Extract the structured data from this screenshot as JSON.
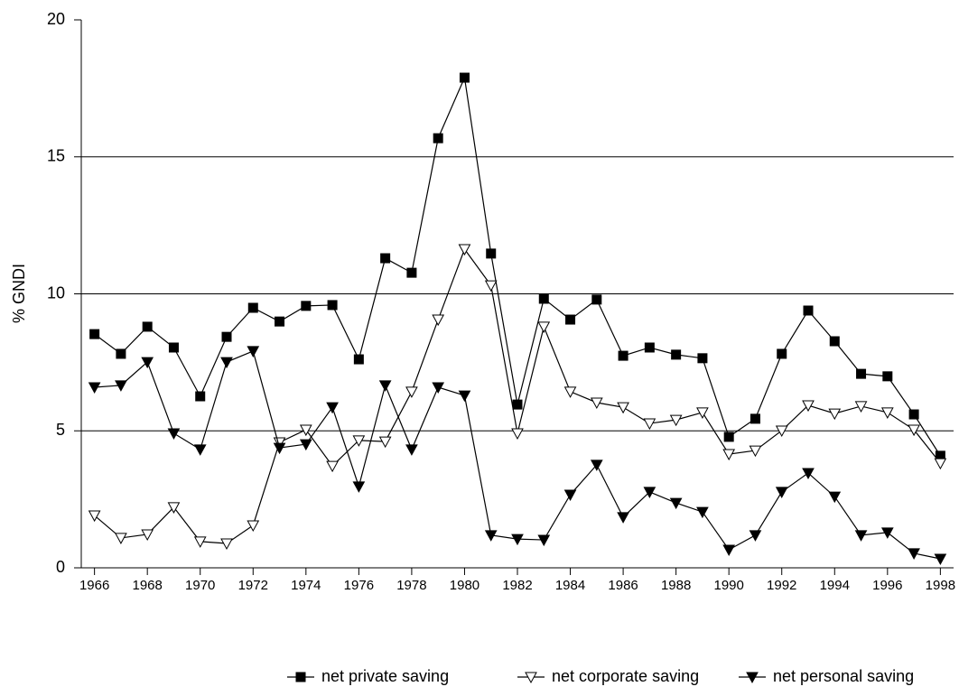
{
  "chart_data": {
    "type": "line",
    "y_label": "% GNDI",
    "x": [
      1966,
      1967,
      1968,
      1969,
      1970,
      1971,
      1972,
      1973,
      1974,
      1975,
      1976,
      1977,
      1978,
      1979,
      1980,
      1981,
      1982,
      1983,
      1984,
      1985,
      1986,
      1987,
      1988,
      1989,
      1990,
      1991,
      1992,
      1993,
      1994,
      1995,
      1996,
      1997,
      1998
    ],
    "series": [
      {
        "name": "net private saving",
        "color": "#000000",
        "marker": "square",
        "values": [
          8.53,
          7.81,
          8.8,
          8.04,
          6.26,
          8.43,
          9.49,
          8.99,
          9.56,
          9.59,
          7.61,
          11.3,
          10.77,
          15.68,
          17.89,
          11.47,
          5.96,
          9.82,
          9.06,
          9.79,
          7.74,
          8.04,
          7.78,
          7.65,
          4.78,
          5.44,
          7.81,
          9.39,
          8.27,
          7.08,
          6.99,
          5.6,
          4.09
        ]
      },
      {
        "name": "net corporate saving",
        "color": "#000000",
        "marker": "triangle-open",
        "values": [
          1.91,
          1.09,
          1.22,
          2.21,
          0.96,
          0.89,
          1.55,
          4.58,
          5.04,
          3.72,
          4.65,
          4.61,
          6.43,
          9.06,
          11.63,
          10.31,
          4.91,
          8.8,
          6.43,
          6.03,
          5.86,
          5.27,
          5.4,
          5.67,
          4.15,
          4.28,
          5.01,
          5.93,
          5.63,
          5.9,
          5.67,
          5.04,
          3.82
        ]
      },
      {
        "name": "net personal saving",
        "color": "#000000",
        "marker": "triangle",
        "values": [
          6.59,
          6.66,
          7.51,
          4.91,
          4.32,
          7.51,
          7.91,
          4.38,
          4.51,
          5.86,
          2.97,
          6.66,
          4.32,
          6.59,
          6.29,
          1.19,
          1.05,
          1.02,
          2.67,
          3.76,
          1.85,
          2.77,
          2.37,
          2.04,
          0.66,
          1.19,
          2.77,
          3.46,
          2.6,
          1.19,
          1.29,
          0.53,
          0.33
        ]
      }
    ],
    "xlim": [
      1965.5,
      1998.5
    ],
    "xticks": [
      1966,
      1968,
      1970,
      1972,
      1974,
      1976,
      1978,
      1980,
      1982,
      1984,
      1986,
      1988,
      1990,
      1992,
      1994,
      1996,
      1998
    ],
    "ylim": [
      0,
      20
    ],
    "yticks": [
      0,
      5,
      10,
      15,
      20
    ],
    "grid": true,
    "legend": "bottom"
  }
}
